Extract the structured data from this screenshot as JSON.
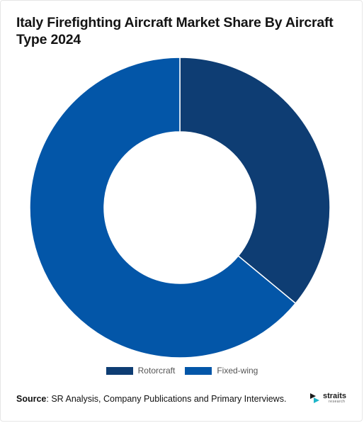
{
  "title": "Italy Firefighting Aircraft Market Share By Aircraft Type 2024",
  "chart_data": {
    "type": "pie",
    "subtype": "donut",
    "title": "Italy Firefighting Aircraft Market Share By Aircraft Type 2024",
    "categories": [
      "Rotorcraft",
      "Fixed-wing"
    ],
    "values": [
      36,
      64
    ],
    "colors": [
      "#0e3d73",
      "#0356a8"
    ],
    "legend_position": "bottom-center"
  },
  "source": {
    "label": "Source",
    "text": ": SR Analysis, Company Publications and Primary Interviews."
  },
  "logo": {
    "name": "straits",
    "sub": "research"
  }
}
